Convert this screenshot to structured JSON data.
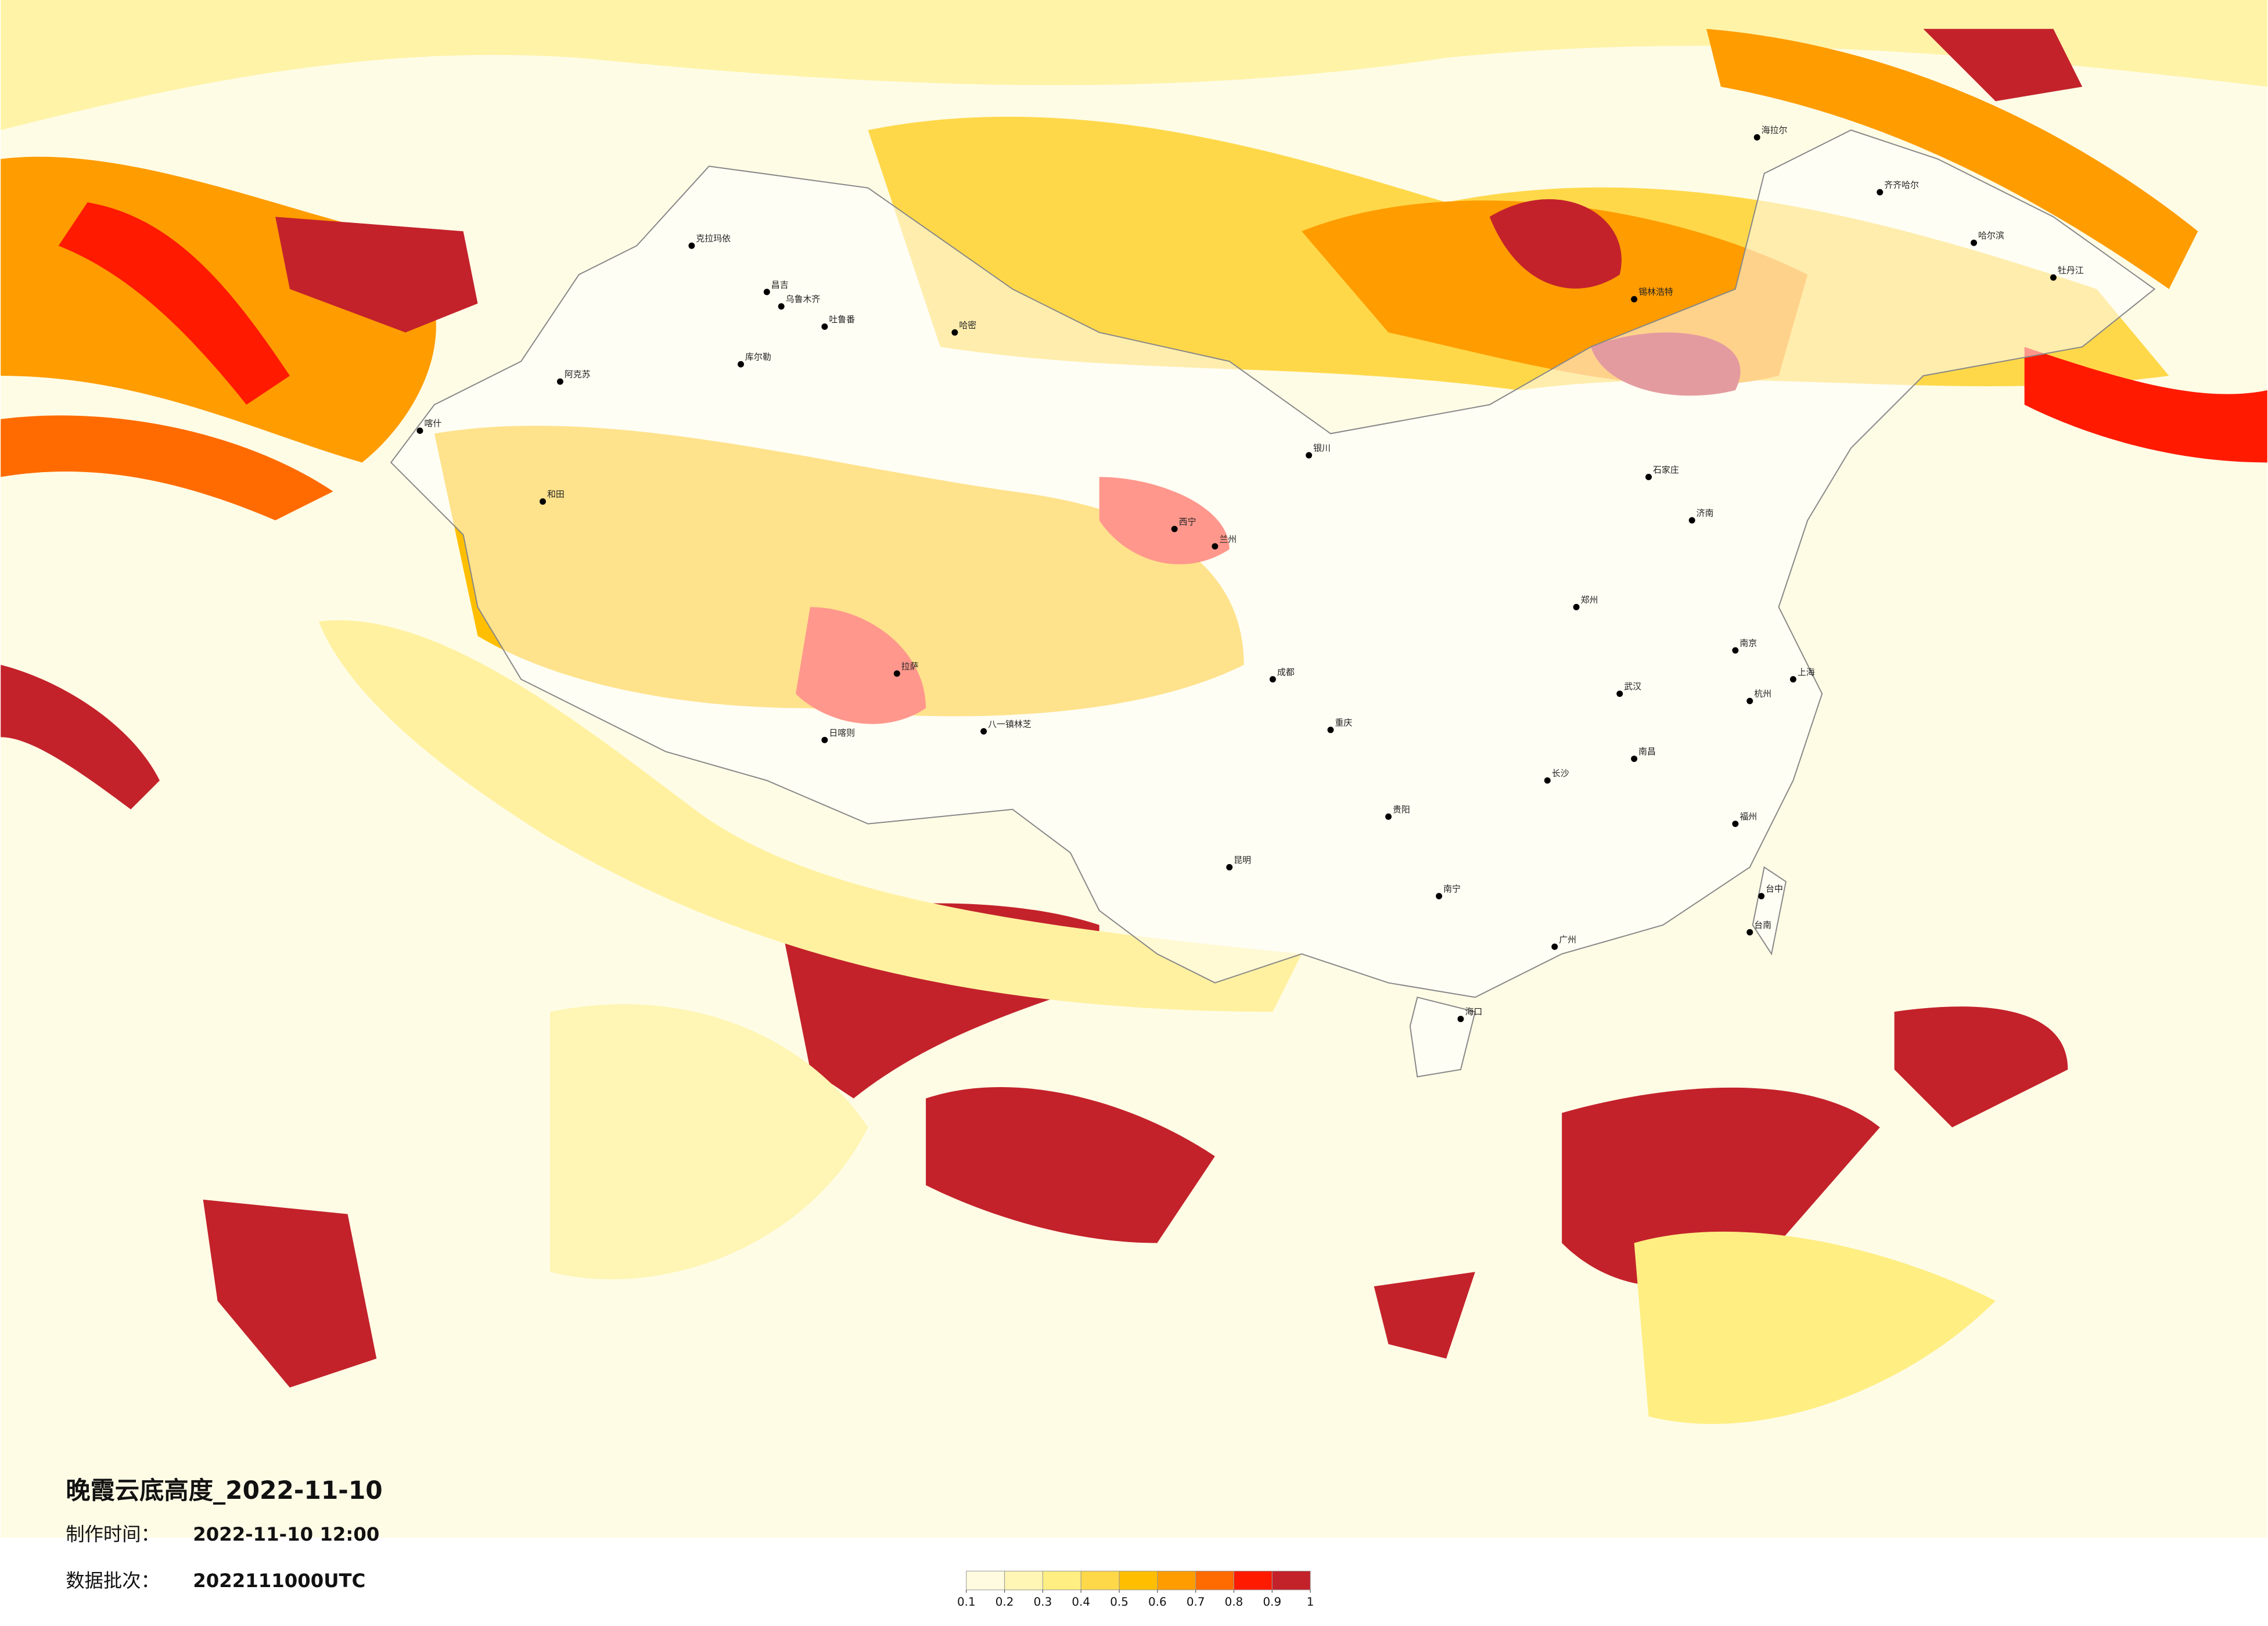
{
  "header": {
    "title": "晚霞云底高度_2022-11-10",
    "make_time_label": "制作时间：",
    "make_time": "2022-11-10 12:00",
    "batch_label": "数据批次：",
    "batch": "2022111000UTC"
  },
  "legend": {
    "ticks": [
      0.1,
      0.2,
      0.3,
      0.4,
      0.5,
      0.6,
      0.7,
      0.8,
      0.9,
      1
    ],
    "colors": [
      "#fffbe0",
      "#fff5b4",
      "#ffee82",
      "#ffd84a",
      "#ffbf00",
      "#ff9c00",
      "#ff6b00",
      "#ff1a00",
      "#c3222b"
    ]
  },
  "cities": [
    "克拉玛依",
    "昌吉",
    "乌鲁木齐",
    "吐鲁番",
    "哈密",
    "库尔勒",
    "阿克苏",
    "喀什",
    "和田",
    "日喀则",
    "拉萨",
    "八一镇林芝",
    "西宁",
    "兰州",
    "银川",
    "锡林浩特",
    "海拉尔",
    "齐齐哈尔",
    "哈尔滨",
    "牡丹江",
    "成都",
    "重庆",
    "贵阳",
    "昆明",
    "南宁",
    "广州",
    "长沙",
    "武汉",
    "南昌",
    "福州",
    "台中",
    "台南",
    "海口",
    "郑州",
    "石家庄",
    "济南",
    "南京",
    "杭州",
    "上海"
  ]
}
